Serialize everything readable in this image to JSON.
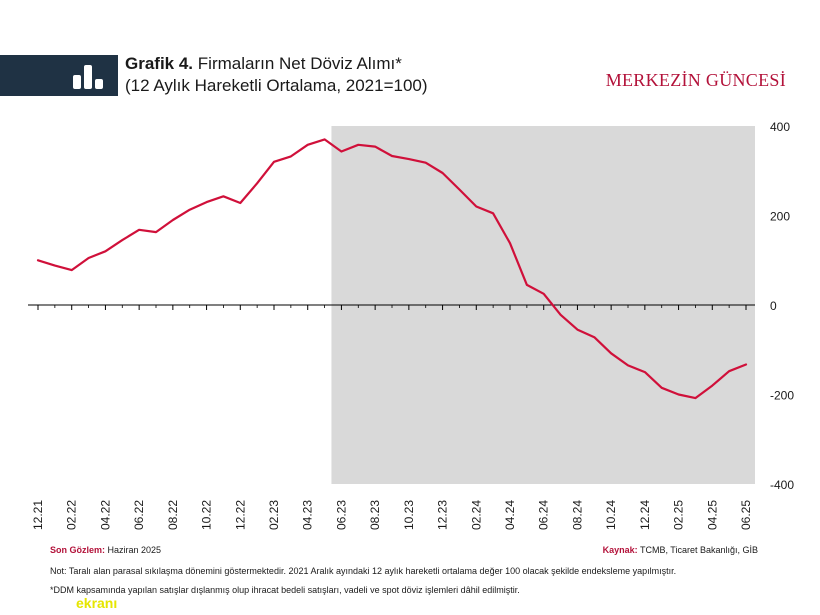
{
  "header": {
    "title_bold": "Grafik 4.",
    "title_rest": "Firmaların Net Döviz Alımı*",
    "subtitle": "(12 Aylık Hareketli Ortalama, 2021=100)",
    "brand": "MERKEZİN GÜNCESİ"
  },
  "footer": {
    "last_obs_label": "Son Gözlem:",
    "last_obs_value": "Haziran 2025",
    "source_label": "Kaynak:",
    "source_value": "TCMB, Ticaret Bakanlığı, GİB",
    "note": "Not: Taralı alan parasal sıkılaşma dönemini göstermektedir. 2021 Aralık ayındaki 12 aylık hareketli ortalama değer 100 olacak şekilde endeksleme yapılmıştır.",
    "footnote": "*DDM kapsamında yapılan satışlar dışlanmış olup ihracat bedeli satışları, vadeli ve spot döviz işlemleri dâhil edilmiştir.",
    "watermark": "ekranı"
  },
  "chart_data": {
    "type": "line",
    "x_tick_labels": [
      "12.21",
      "02.22",
      "04.22",
      "06.22",
      "08.22",
      "10.22",
      "12.22",
      "02.23",
      "04.23",
      "06.23",
      "08.23",
      "10.23",
      "12.23",
      "02.24",
      "04.24",
      "06.24",
      "08.24",
      "10.24",
      "12.24",
      "02.25",
      "04.25",
      "06.25"
    ],
    "x": [
      "12.21",
      "01.22",
      "02.22",
      "03.22",
      "04.22",
      "05.22",
      "06.22",
      "07.22",
      "08.22",
      "09.22",
      "10.22",
      "11.22",
      "12.22",
      "01.23",
      "02.23",
      "03.23",
      "04.23",
      "05.23",
      "06.23",
      "07.23",
      "08.23",
      "09.23",
      "10.23",
      "11.23",
      "12.23",
      "01.24",
      "02.24",
      "03.24",
      "04.24",
      "05.24",
      "06.24",
      "07.24",
      "08.24",
      "09.24",
      "10.24",
      "11.24",
      "12.24",
      "01.25",
      "02.25",
      "03.25",
      "04.25",
      "05.25",
      "06.25"
    ],
    "series": [
      {
        "values": [
          100,
          88,
          78,
          105,
          120,
          145,
          168,
          163,
          190,
          213,
          230,
          243,
          228,
          272,
          320,
          332,
          358,
          370,
          343,
          358,
          354,
          333,
          326,
          318,
          295,
          258,
          220,
          205,
          138,
          45,
          25,
          -22,
          -55,
          -72,
          -108,
          -135,
          -150,
          -185,
          -200,
          -208,
          -180,
          -148,
          -133
        ],
        "color": "#d0103a"
      }
    ],
    "ylim": [
      -400,
      400
    ],
    "y_ticks": [
      -400,
      -200,
      0,
      200,
      400
    ],
    "shaded_region": {
      "from": "06.23",
      "to": "06.25",
      "color": "#d9d9d9"
    },
    "xlabel": "",
    "ylabel": ""
  }
}
